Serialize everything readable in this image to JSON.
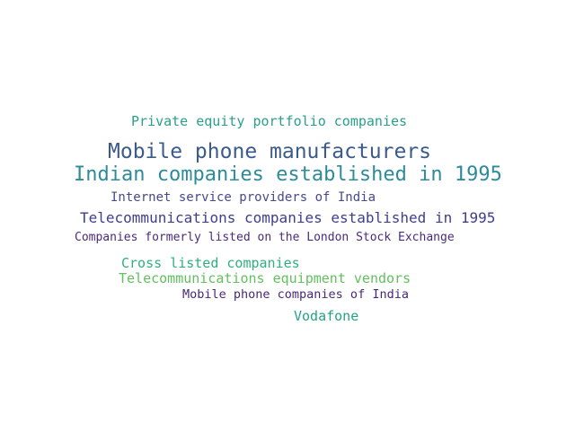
{
  "words": [
    {
      "text": "Private equity portfolio companies",
      "color": "#2aa08a"
    },
    {
      "text": "Mobile phone manufacturers",
      "color": "#3b5b8c"
    },
    {
      "text": "Indian companies established in 1995",
      "color": "#2e8b99"
    },
    {
      "text": "Internet service providers of India",
      "color": "#464a8a"
    },
    {
      "text": "Telecommunications companies established in 1995",
      "color": "#3d3f8c"
    },
    {
      "text": "Companies formerly listed on the London Stock Exchange",
      "color": "#4a2a7a"
    },
    {
      "text": "Cross listed companies",
      "color": "#2eb07c"
    },
    {
      "text": "Telecommunications equipment vendors",
      "color": "#62c05e"
    },
    {
      "text": "Mobile phone companies of India",
      "color": "#482878"
    },
    {
      "text": "Vodafone",
      "color": "#23a28a"
    }
  ]
}
